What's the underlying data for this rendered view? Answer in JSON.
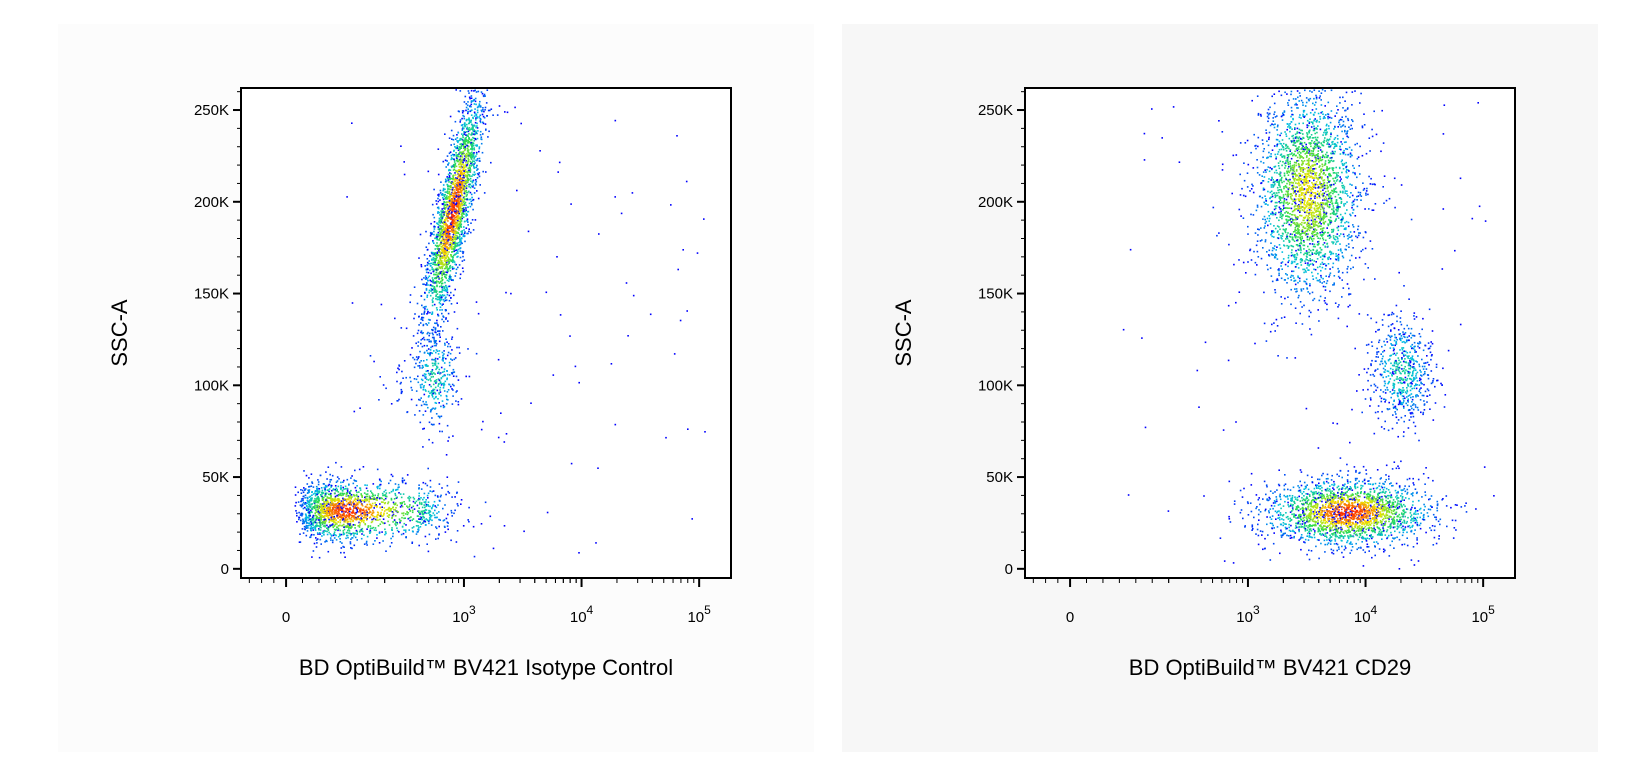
{
  "chart_data": [
    {
      "type": "scatter",
      "style": "flow cytometry density dot plot (pseudocolor)",
      "xlabel": "BD OptiBuild™ BV421 Isotype Control",
      "ylabel": "SSC-A",
      "x_scale": "biexponential (log above ~10^2.5)",
      "x_ticks": [
        {
          "label": "0",
          "sup": "",
          "value": 0
        },
        {
          "label": "10",
          "sup": "3",
          "value": 1000
        },
        {
          "label": "10",
          "sup": "4",
          "value": 10000
        },
        {
          "label": "10",
          "sup": "5",
          "value": 100000
        }
      ],
      "y_ticks": [
        {
          "label": "0",
          "value": 0
        },
        {
          "label": "50K",
          "value": 50000
        },
        {
          "label": "100K",
          "value": 100000
        },
        {
          "label": "150K",
          "value": 150000
        },
        {
          "label": "200K",
          "value": 200000
        },
        {
          "label": "250K",
          "value": 250000
        }
      ],
      "ylim": [
        -5000,
        262000
      ],
      "colors": {
        "low": "#0000ff",
        "mid": "#00c8c8",
        "high": "#ff0000"
      },
      "populations": [
        {
          "label": "",
          "x_center": 180,
          "y_center": 32000,
          "x_spread_decades": 0.28,
          "y_spread": 8000,
          "count": 1800,
          "density": "high"
        },
        {
          "label": "",
          "x_center": 800,
          "y_center": 195000,
          "x_spread_decades": 0.07,
          "y_spread": 32000,
          "count": 2400,
          "density": "high",
          "tilt": 0.9
        },
        {
          "label": "",
          "x_center": 560,
          "y_center": 105000,
          "x_spread_decades": 0.1,
          "y_spread": 14000,
          "count": 350,
          "density": "low"
        }
      ]
    },
    {
      "type": "scatter",
      "style": "flow cytometry density dot plot (pseudocolor)",
      "xlabel": "BD OptiBuild™ BV421 CD29",
      "ylabel": "SSC-A",
      "x_scale": "biexponential (log above ~10^2.5)",
      "x_ticks": [
        {
          "label": "0",
          "sup": "",
          "value": 0
        },
        {
          "label": "10",
          "sup": "3",
          "value": 1000
        },
        {
          "label": "10",
          "sup": "4",
          "value": 10000
        },
        {
          "label": "10",
          "sup": "5",
          "value": 100000
        }
      ],
      "y_ticks": [
        {
          "label": "0",
          "value": 0
        },
        {
          "label": "50K",
          "value": 50000
        },
        {
          "label": "100K",
          "value": 100000
        },
        {
          "label": "150K",
          "value": 150000
        },
        {
          "label": "200K",
          "value": 200000
        },
        {
          "label": "250K",
          "value": 250000
        }
      ],
      "ylim": [
        -5000,
        262000
      ],
      "colors": {
        "low": "#0000ff",
        "mid": "#00c8c8",
        "high": "#ff0000"
      },
      "populations": [
        {
          "label": "",
          "x_center": 3200,
          "y_center": 205000,
          "x_spread_decades": 0.22,
          "y_spread": 28000,
          "count": 2600,
          "density": "medium"
        },
        {
          "label": "",
          "x_center": 20000,
          "y_center": 108000,
          "x_spread_decades": 0.13,
          "y_spread": 15000,
          "count": 600,
          "density": "low"
        },
        {
          "label": "",
          "x_center": 7000,
          "y_center": 31000,
          "x_spread_decades": 0.35,
          "y_spread": 9000,
          "count": 2200,
          "density": "high"
        }
      ]
    }
  ]
}
